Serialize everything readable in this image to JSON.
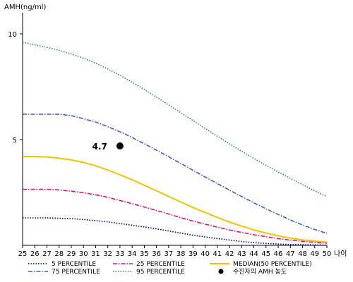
{
  "chart_data": {
    "type": "line",
    "ylabel": "AMH(ng/ml)",
    "xlabel": "나이",
    "x": [
      25,
      26,
      27,
      28,
      29,
      30,
      31,
      32,
      33,
      34,
      35,
      36,
      37,
      38,
      39,
      40,
      41,
      42,
      43,
      44,
      45,
      46,
      47,
      48,
      49,
      50
    ],
    "xlim": [
      25,
      50
    ],
    "ylim": [
      0,
      11
    ],
    "yticks": [
      5,
      10
    ],
    "series": [
      {
        "name": "5 PERCENTILE",
        "color": "#00008b",
        "style": "dotted",
        "values": [
          1.3,
          1.3,
          1.3,
          1.28,
          1.26,
          1.22,
          1.17,
          1.11,
          1.03,
          0.95,
          0.87,
          0.78,
          0.68,
          0.58,
          0.48,
          0.4,
          0.32,
          0.25,
          0.18,
          0.13,
          0.09,
          0.06,
          0.04,
          0.03,
          0.02,
          0.01
        ]
      },
      {
        "name": "25 PERCENTILE",
        "color": "#e0107a",
        "style": "dashdot",
        "values": [
          2.65,
          2.65,
          2.65,
          2.62,
          2.56,
          2.49,
          2.39,
          2.27,
          2.12,
          1.97,
          1.81,
          1.65,
          1.48,
          1.31,
          1.15,
          1.0,
          0.86,
          0.73,
          0.61,
          0.5,
          0.41,
          0.32,
          0.25,
          0.19,
          0.14,
          0.1
        ]
      },
      {
        "name": "MEDIAN(50 PERCENTILE)",
        "color": "#f0c400",
        "style": "solid",
        "values": [
          4.2,
          4.2,
          4.18,
          4.12,
          4.04,
          3.92,
          3.76,
          3.56,
          3.34,
          3.1,
          2.84,
          2.58,
          2.31,
          2.05,
          1.79,
          1.55,
          1.32,
          1.1,
          0.91,
          0.73,
          0.58,
          0.45,
          0.34,
          0.26,
          0.2,
          0.15
        ]
      },
      {
        "name": "75 PERCENTILE",
        "color": "#3b5fc8",
        "style": "dashdot",
        "values": [
          6.2,
          6.2,
          6.2,
          6.2,
          6.13,
          5.99,
          5.83,
          5.61,
          5.37,
          5.1,
          4.8,
          4.5,
          4.19,
          3.87,
          3.55,
          3.23,
          2.92,
          2.61,
          2.31,
          2.01,
          1.73,
          1.46,
          1.2,
          0.96,
          0.75,
          0.57
        ]
      },
      {
        "name": "95 PERCENTILE",
        "color": "#2e8b57",
        "style": "dotted",
        "values": [
          9.6,
          9.48,
          9.36,
          9.22,
          9.05,
          8.85,
          8.61,
          8.34,
          8.04,
          7.71,
          7.37,
          7.01,
          6.64,
          6.27,
          5.9,
          5.53,
          5.16,
          4.8,
          4.45,
          4.11,
          3.78,
          3.47,
          3.17,
          2.87,
          2.58,
          2.3
        ]
      }
    ],
    "point": {
      "name": "수진자의 AMH 농도",
      "x": 33,
      "y": 4.7,
      "label": "4.7",
      "color": "#000000"
    },
    "legend_position": "bottom",
    "grid": false
  }
}
